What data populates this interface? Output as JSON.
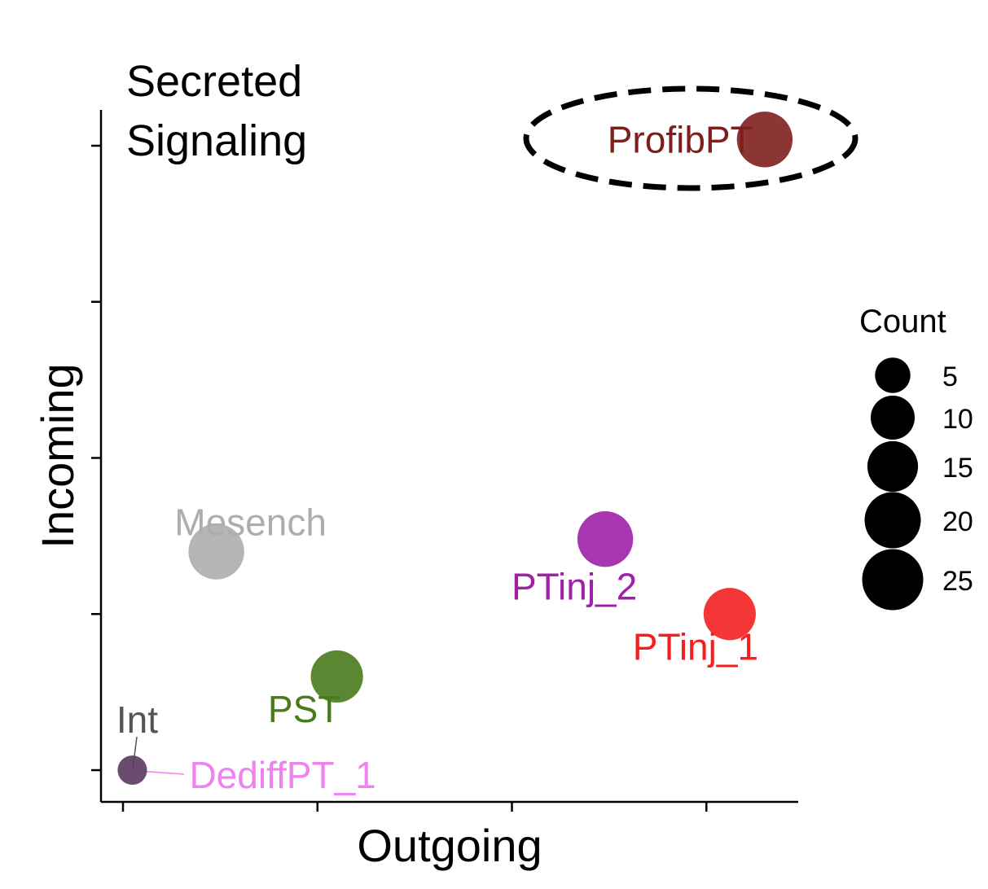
{
  "chart_data": {
    "type": "scatter",
    "title": "Secreted\nSignaling",
    "xlabel": "Outgoing",
    "ylabel": "Incoming",
    "xlim": [
      0,
      10
    ],
    "ylim": [
      0,
      10
    ],
    "x_ticks": [
      0,
      2.5,
      5,
      7.5
    ],
    "y_ticks": [
      0,
      2.5,
      5,
      7.5,
      10
    ],
    "grid": false,
    "size_legend": {
      "title": "Count",
      "entries": [
        {
          "label": "5",
          "value": 5
        },
        {
          "label": "10",
          "value": 10
        },
        {
          "label": "15",
          "value": 15
        },
        {
          "label": "20",
          "value": 20
        },
        {
          "label": "25",
          "value": 25
        }
      ],
      "placement": "right"
    },
    "points": [
      {
        "label": "ProfibPT",
        "x": 8.25,
        "y": 10.1,
        "count": 18,
        "color": "#7E1F1F",
        "label_pos": "left",
        "highlighted": true
      },
      {
        "label": "Mesench",
        "x": 1.2,
        "y": 3.5,
        "count": 18,
        "color": "#ADADAD",
        "label_pos": "above"
      },
      {
        "label": "PTinj_2",
        "x": 6.2,
        "y": 3.7,
        "count": 18,
        "color": "#A020A8",
        "label_pos": "below"
      },
      {
        "label": "PTinj_1",
        "x": 7.8,
        "y": 2.5,
        "count": 15,
        "color": "#F42020",
        "label_pos": "below"
      },
      {
        "label": "PST",
        "x": 2.75,
        "y": 1.5,
        "count": 15,
        "color": "#4A7A1C",
        "label_pos": "below"
      },
      {
        "label": "Int",
        "x": 0.12,
        "y": 0.0,
        "count": 2,
        "color": "#5A3A5E",
        "label_pos": "above"
      },
      {
        "label": "DediffPT_1",
        "x": 0.12,
        "y": 0.0,
        "count": 1,
        "color": "#EE82EE",
        "label_pos": "right"
      }
    ]
  }
}
